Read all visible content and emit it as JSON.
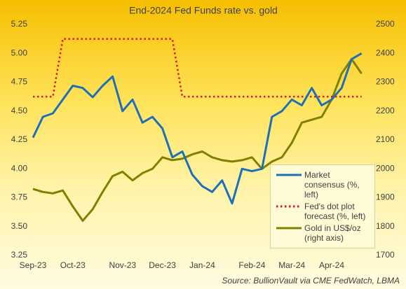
{
  "chart_data": {
    "type": "line",
    "title": "End-2024 Fed Funds rate vs. gold",
    "source": "Source: BullionVault via CME FedWatch, LBMA",
    "categories": [
      "Sep-23",
      null,
      null,
      null,
      "Oct-23",
      null,
      null,
      null,
      null,
      "Nov-23",
      null,
      null,
      null,
      "Dec-23",
      null,
      null,
      null,
      "Jan-24",
      null,
      null,
      null,
      null,
      "Feb-24",
      null,
      null,
      null,
      "Mar-24",
      null,
      null,
      null,
      "Apr-24",
      null,
      null,
      null
    ],
    "series": [
      {
        "name": "Market consensus (%, left)",
        "color": "#1f6fb8",
        "style": "solid",
        "values": [
          4.27,
          4.45,
          4.48,
          4.6,
          4.72,
          4.7,
          4.62,
          4.72,
          4.8,
          4.5,
          4.6,
          4.4,
          4.45,
          4.35,
          4.1,
          4.15,
          3.95,
          3.85,
          3.8,
          3.9,
          3.7,
          4.0,
          3.98,
          4.0,
          4.45,
          4.5,
          4.6,
          4.55,
          4.7,
          4.55,
          4.6,
          4.7,
          4.95,
          5.0
        ]
      },
      {
        "name": "Fed's dot plot forecast (%, left)",
        "color": "#e0161b",
        "style": "dotted",
        "values": [
          4.625,
          4.625,
          4.625,
          5.125,
          5.125,
          5.125,
          5.125,
          5.125,
          5.125,
          5.125,
          5.125,
          5.125,
          5.125,
          5.125,
          5.125,
          4.625,
          4.625,
          4.625,
          4.625,
          4.625,
          4.625,
          4.625,
          4.625,
          4.625,
          4.625,
          4.625,
          4.625,
          4.625,
          4.625,
          4.625,
          4.625,
          4.625,
          4.625,
          4.625
        ]
      },
      {
        "name": "Gold in US$/oz (right axis)",
        "color": "#808000",
        "style": "solid",
        "axis": "y2",
        "values": [
          1930,
          1920,
          1915,
          1925,
          1870,
          1820,
          1860,
          1920,
          1975,
          1990,
          1960,
          1985,
          2000,
          2040,
          2030,
          2035,
          2050,
          2060,
          2040,
          2030,
          2025,
          2030,
          2040,
          2000,
          2025,
          2040,
          2090,
          2160,
          2170,
          2180,
          2240,
          2330,
          2380,
          2330
        ]
      }
    ],
    "ylim": [
      3.25,
      5.25
    ],
    "yticks": [
      3.25,
      {
        "value": 3.5,
        "label": "3.50"
      },
      3.75,
      {
        "value": 4,
        "label": "4.00"
      },
      4.25,
      {
        "value": 4.5,
        "label": "4.50"
      },
      4.75,
      {
        "value": 5,
        "label": "5.00"
      },
      5.25
    ],
    "y2lim": [
      1700,
      2500
    ],
    "y2ticks": [
      1700,
      1800,
      1900,
      2000,
      2100,
      2200,
      2300,
      2400,
      2500
    ],
    "legend": "lower right",
    "grid": false
  }
}
